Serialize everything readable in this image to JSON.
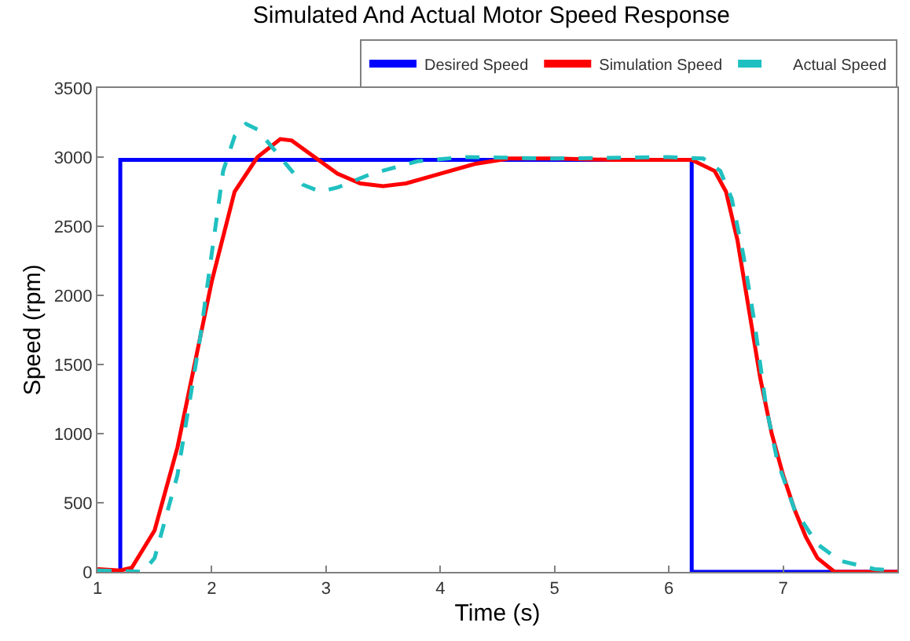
{
  "chart_data": {
    "type": "line",
    "title": "Simulated And Actual Motor Speed Response",
    "xlabel": "Time (s)",
    "ylabel": "Speed (rpm)",
    "xlim": [
      1,
      8
    ],
    "xticks": [
      1,
      2,
      3,
      4,
      5,
      6,
      7
    ],
    "ylim": [
      0,
      3500
    ],
    "yticks": [
      0,
      500,
      1000,
      1500,
      2000,
      2500,
      3000,
      3500
    ],
    "legend": "top right",
    "marker": "none",
    "series": [
      {
        "name": "Desired Speed",
        "color": "#0000ff",
        "line_style": "solid",
        "x": [
          1,
          1.2,
          1.2,
          6.2,
          6.2,
          8
        ],
        "values": [
          0,
          0,
          2980,
          2980,
          0,
          0
        ]
      },
      {
        "name": "Simulation Speed",
        "color": "#ff0000",
        "line_style": "solid",
        "x": [
          1,
          1.2,
          1.3,
          1.5,
          1.7,
          1.9,
          2.0,
          2.2,
          2.4,
          2.6,
          2.7,
          2.9,
          3.1,
          3.3,
          3.5,
          3.7,
          4.0,
          4.3,
          4.6,
          5,
          5.5,
          6.0,
          6.2,
          6.4,
          6.5,
          6.6,
          6.7,
          6.8,
          6.9,
          7.0,
          7.1,
          7.2,
          7.3,
          7.45,
          8
        ],
        "values": [
          20,
          10,
          30,
          300,
          900,
          1700,
          2100,
          2750,
          3000,
          3130,
          3120,
          3000,
          2880,
          2810,
          2790,
          2810,
          2880,
          2950,
          2990,
          2990,
          2980,
          2980,
          2980,
          2900,
          2750,
          2400,
          1900,
          1400,
          1000,
          700,
          450,
          250,
          100,
          0,
          0
        ]
      },
      {
        "name": "Actual Speed",
        "color": "#20c0c0",
        "line_style": "dashed",
        "x": [
          1,
          1.4,
          1.5,
          1.7,
          1.9,
          2.0,
          2.1,
          2.2,
          2.3,
          2.4,
          2.6,
          2.8,
          2.95,
          3.1,
          3.4,
          3.8,
          4.2,
          5,
          6.0,
          6.3,
          6.45,
          6.55,
          6.65,
          6.75,
          6.85,
          6.95,
          7.1,
          7.3,
          7.5,
          7.8,
          8
        ],
        "values": [
          10,
          0,
          100,
          700,
          1700,
          2300,
          2900,
          3150,
          3240,
          3200,
          3000,
          2800,
          2750,
          2780,
          2880,
          2970,
          3000,
          2990,
          3000,
          2990,
          2900,
          2700,
          2300,
          1800,
          1200,
          800,
          450,
          200,
          80,
          20,
          10
        ]
      }
    ]
  }
}
